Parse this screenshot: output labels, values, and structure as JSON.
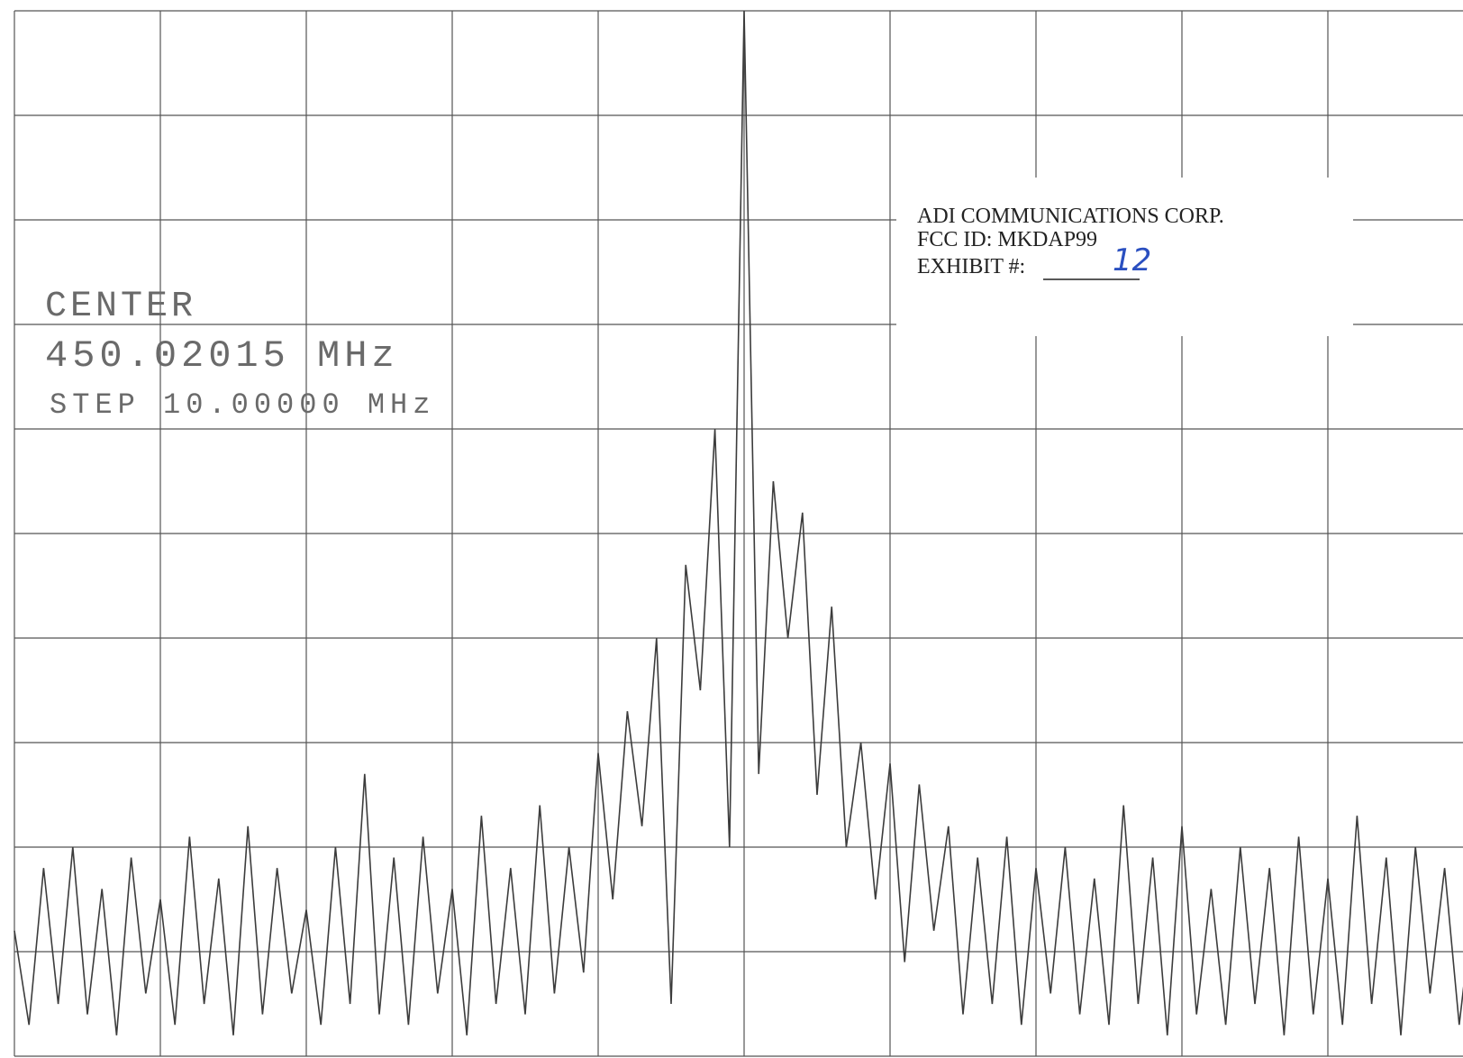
{
  "chart_data": {
    "type": "line",
    "annotations": [
      "CENTER",
      "450.02015 MHz",
      "STEP 10.00000 MHz"
    ],
    "x": [
      0,
      0.1,
      0.2,
      0.3,
      0.4,
      0.5,
      0.6,
      0.7,
      0.8,
      0.9,
      1,
      1.1,
      1.2,
      1.3,
      1.4,
      1.5,
      1.6,
      1.7,
      1.8,
      1.9,
      2,
      2.1,
      2.2,
      2.3,
      2.4,
      2.5,
      2.6,
      2.7,
      2.8,
      2.9,
      3,
      3.1,
      3.2,
      3.3,
      3.4,
      3.5,
      3.6,
      3.7,
      3.8,
      3.9,
      4,
      4.1,
      4.2,
      4.3,
      4.4,
      4.5,
      4.6,
      4.7,
      4.8,
      4.9,
      5,
      5.1,
      5.2,
      5.3,
      5.4,
      5.5,
      5.6,
      5.7,
      5.8,
      5.9,
      6,
      6.1,
      6.2,
      6.3,
      6.4,
      6.5,
      6.6,
      6.7,
      6.8,
      6.9,
      7,
      7.1,
      7.2,
      7.3,
      7.4,
      7.5,
      7.6,
      7.7,
      7.8,
      7.9,
      8,
      8.1,
      8.2,
      8.3,
      8.4,
      8.5,
      8.6,
      8.7,
      8.8,
      8.9,
      9,
      9.1,
      9.2,
      9.3,
      9.4,
      9.5,
      9.6,
      9.7,
      9.8,
      9.9,
      10
    ],
    "values": [
      1.2,
      0.3,
      1.8,
      0.5,
      2.0,
      0.4,
      1.6,
      0.2,
      1.9,
      0.6,
      1.5,
      0.3,
      2.1,
      0.5,
      1.7,
      0.2,
      2.2,
      0.4,
      1.8,
      0.6,
      1.4,
      0.3,
      2.0,
      0.5,
      2.7,
      0.4,
      1.9,
      0.3,
      2.1,
      0.6,
      1.6,
      0.2,
      2.3,
      0.5,
      1.8,
      0.4,
      2.4,
      0.6,
      2.0,
      0.8,
      2.9,
      1.5,
      3.3,
      2.2,
      4.0,
      0.5,
      4.7,
      3.5,
      6.0,
      2.0,
      10,
      2.7,
      5.5,
      4.0,
      5.2,
      2.5,
      4.3,
      2.0,
      3.0,
      1.5,
      2.8,
      0.9,
      2.6,
      1.2,
      2.2,
      0.4,
      1.9,
      0.5,
      2.1,
      0.3,
      1.8,
      0.6,
      2.0,
      0.4,
      1.7,
      0.3,
      2.4,
      0.5,
      1.9,
      0.2,
      2.2,
      0.4,
      1.6,
      0.3,
      2.0,
      0.5,
      1.8,
      0.2,
      2.1,
      0.4,
      1.7,
      0.3,
      2.3,
      0.5,
      1.9,
      0.2,
      2.0,
      0.6,
      1.8,
      0.3,
      1.5
    ],
    "color": "#3c3c3c",
    "xlim": [
      0,
      10
    ],
    "ylim": [
      0,
      10
    ],
    "grid": true
  },
  "stamp": {
    "company": "ADI COMMUNICATIONS CORP.",
    "fcc_id": "FCC ID:  MKDAP99",
    "exhibit": "EXHIBIT #:",
    "exhibit_number": "12"
  }
}
